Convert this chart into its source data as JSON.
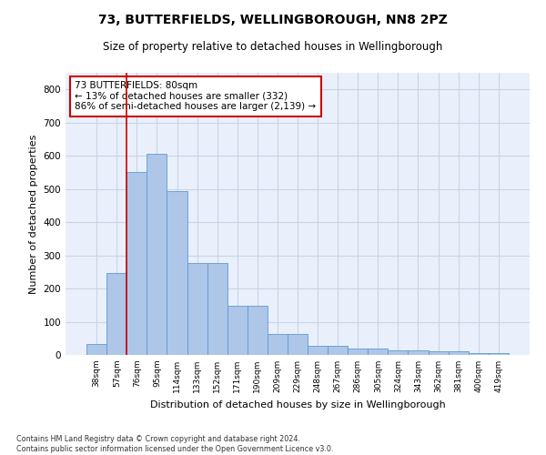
{
  "title1": "73, BUTTERFIELDS, WELLINGBOROUGH, NN8 2PZ",
  "title2": "Size of property relative to detached houses in Wellingborough",
  "xlabel": "Distribution of detached houses by size in Wellingborough",
  "ylabel": "Number of detached properties",
  "categories": [
    "38sqm",
    "57sqm",
    "76sqm",
    "95sqm",
    "114sqm",
    "133sqm",
    "152sqm",
    "171sqm",
    "190sqm",
    "209sqm",
    "229sqm",
    "248sqm",
    "267sqm",
    "286sqm",
    "305sqm",
    "324sqm",
    "343sqm",
    "362sqm",
    "381sqm",
    "400sqm",
    "419sqm"
  ],
  "bar_heights": [
    32,
    247,
    550,
    605,
    494,
    277,
    277,
    148,
    148,
    63,
    63,
    28,
    28,
    18,
    18,
    13,
    13,
    10,
    10,
    6,
    6
  ],
  "bar_color": "#aec6e8",
  "bar_edgecolor": "#5b9bd5",
  "annotation_box_text": "73 BUTTERFIELDS: 80sqm\n← 13% of detached houses are smaller (332)\n86% of semi-detached houses are larger (2,139) →",
  "annotation_box_color": "#cc0000",
  "vline_x": 1.5,
  "vline_color": "#cc0000",
  "ylim": [
    0,
    850
  ],
  "yticks": [
    0,
    100,
    200,
    300,
    400,
    500,
    600,
    700,
    800
  ],
  "grid_color": "#c8d4e8",
  "bg_color": "#eaf0fb",
  "footnote": "Contains HM Land Registry data © Crown copyright and database right 2024.\nContains public sector information licensed under the Open Government Licence v3.0.",
  "title1_fontsize": 10,
  "title2_fontsize": 8.5,
  "xlabel_fontsize": 8,
  "ylabel_fontsize": 8,
  "annotation_fontsize": 7.5
}
